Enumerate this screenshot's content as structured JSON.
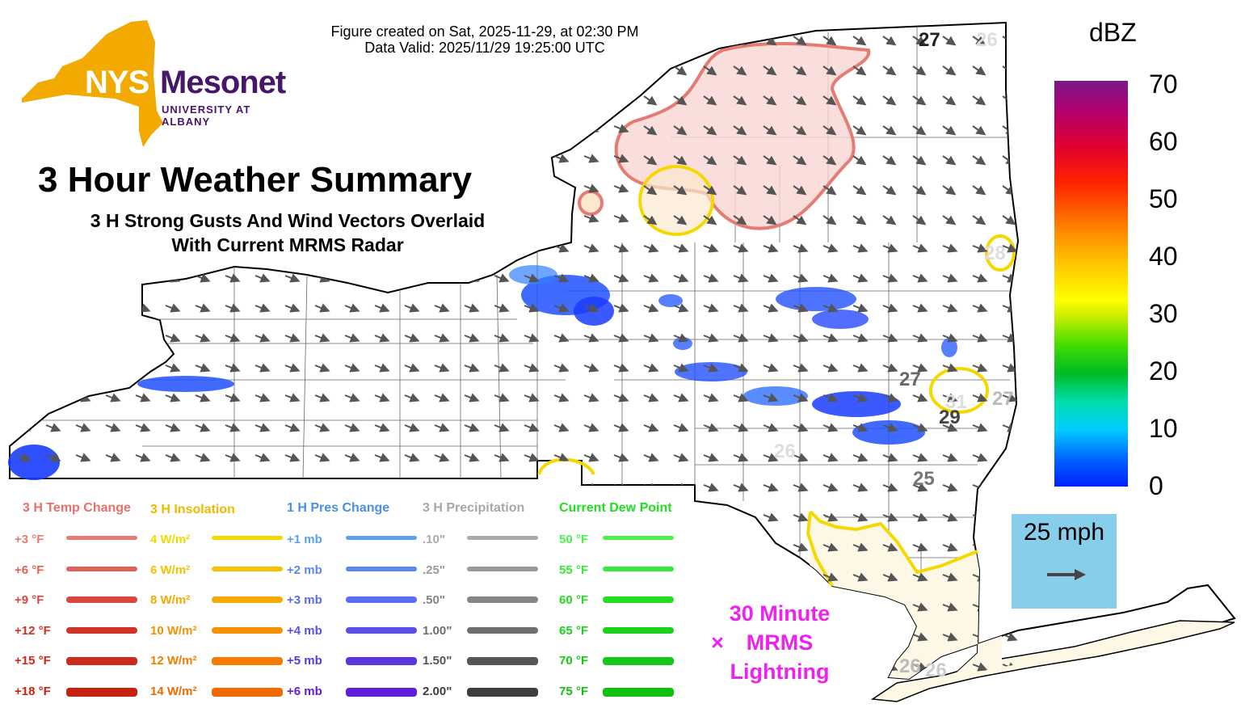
{
  "header": {
    "created_line": "Figure created on Sat, 2025-11-29, at 02:30 PM",
    "valid_line": "Data Valid: 2025/11/29 19:25:00 UTC"
  },
  "logo": {
    "brand_left": "NYS",
    "brand_right": "Mesonet",
    "tagline": "UNIVERSITY AT ALBANY",
    "gold_color": "#f2a900",
    "purple_color": "#46166b"
  },
  "title": {
    "main": "3 Hour Weather Summary",
    "sub_line1": "3 H Strong Gusts And Wind Vectors Overlaid",
    "sub_line2": "With Current MRMS Radar"
  },
  "colorbar": {
    "unit": "dBZ",
    "ticks": [
      "70",
      "60",
      "50",
      "40",
      "30",
      "20",
      "10",
      "0"
    ]
  },
  "wind_key": {
    "label": "25 mph",
    "background": "#87ceeb"
  },
  "lightning_legend": {
    "symbol": "×",
    "line1": "30 Minute",
    "line2": "MRMS",
    "line3": "Lightning",
    "color": "#ee22ee"
  },
  "legend": {
    "columns": [
      {
        "header": "3 H Temp Change",
        "header_color": "#e8706a",
        "items": [
          {
            "label": "+3 °F",
            "color": "#e57b72"
          },
          {
            "label": "+6 °F",
            "color": "#e0605a"
          },
          {
            "label": "+9 °F",
            "color": "#d9463f"
          },
          {
            "label": "+12 °F",
            "color": "#d13327"
          },
          {
            "label": "+15 °F",
            "color": "#cc2a1a"
          },
          {
            "label": "+18 °F",
            "color": "#c72210"
          }
        ]
      },
      {
        "header": "3 H Insolation",
        "header_color": "#f2b800",
        "items": [
          {
            "label": "4 W/m²",
            "color": "#f5d800"
          },
          {
            "label": "6 W/m²",
            "color": "#f5c400"
          },
          {
            "label": "8 W/m²",
            "color": "#f5ab00"
          },
          {
            "label": "10 W/m²",
            "color": "#f59100"
          },
          {
            "label": "12 W/m²",
            "color": "#f57c00"
          },
          {
            "label": "14 W/m²",
            "color": "#f06a00"
          }
        ]
      },
      {
        "header": "1 H Pres Change",
        "header_color": "#4a90e2",
        "items": [
          {
            "label": "+1 mb",
            "color": "#5aa0ef"
          },
          {
            "label": "+2 mb",
            "color": "#5a87ef"
          },
          {
            "label": "+3 mb",
            "color": "#5a6cef"
          },
          {
            "label": "+4 mb",
            "color": "#5a50e6"
          },
          {
            "label": "+5 mb",
            "color": "#5c35e0"
          },
          {
            "label": "+6 mb",
            "color": "#5e1ed8"
          }
        ]
      },
      {
        "header": "3 H Precipitation",
        "header_color": "#a8a8a8",
        "items": [
          {
            "label": ".10\"",
            "color": "#aaaaaa"
          },
          {
            "label": ".25\"",
            "color": "#999999"
          },
          {
            "label": ".50\"",
            "color": "#858585"
          },
          {
            "label": "1.00\"",
            "color": "#6e6e6e"
          },
          {
            "label": "1.50\"",
            "color": "#555555"
          },
          {
            "label": "2.00\"",
            "color": "#3e3e3e"
          }
        ]
      },
      {
        "header": "Current Dew Point",
        "header_color": "#22dd22",
        "items": [
          {
            "label": "50 °F",
            "color": "#4ef04e"
          },
          {
            "label": "55 °F",
            "color": "#38e838"
          },
          {
            "label": "60 °F",
            "color": "#22dd22"
          },
          {
            "label": "65 °F",
            "color": "#1cd11c"
          },
          {
            "label": "70 °F",
            "color": "#16c816"
          },
          {
            "label": "75 °F",
            "color": "#10c010"
          }
        ]
      }
    ]
  },
  "gust_labels": [
    {
      "value": "27",
      "color": "#222222"
    },
    {
      "value": "26",
      "color": "#dddddd"
    },
    {
      "value": "28",
      "color": "#dddddd"
    },
    {
      "value": "27",
      "color": "#666666"
    },
    {
      "value": "31",
      "color": "#dddddd"
    },
    {
      "value": "27",
      "color": "#bbbbbb"
    },
    {
      "value": "29",
      "color": "#444444"
    },
    {
      "value": "25",
      "color": "#777777"
    },
    {
      "value": "26",
      "color": "#dddddd"
    },
    {
      "value": "26",
      "color": "#bbbbbb"
    },
    {
      "value": "26",
      "color": "#cccccc"
    }
  ]
}
